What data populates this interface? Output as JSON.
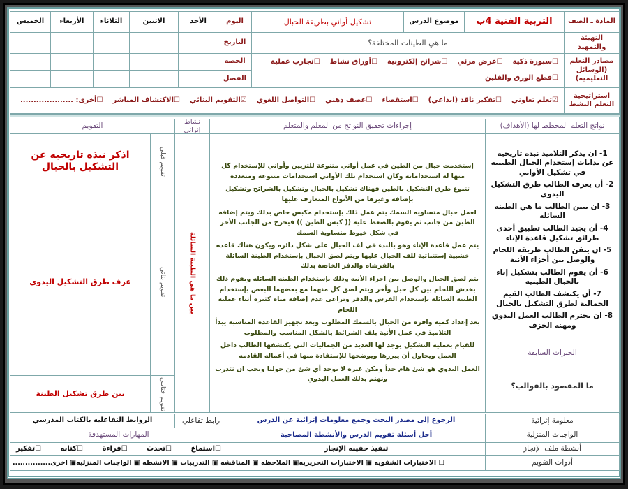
{
  "header": {
    "subject_label": "المادة ـ الصف",
    "subject_value": "التربية الفنية 4ب",
    "topic_label": "موضوع الدرس",
    "topic_value": "تشكيل أواني بطريقة الحبال",
    "day_label": "اليوم",
    "days": [
      "الأحد",
      "الاثنين",
      "الثلاثاء",
      "الأربعاء",
      "الخميس"
    ],
    "date_label": "التاريخ",
    "period_label": "الحصه",
    "class_label": "الفصل",
    "intro_label": "التهيئة والتمهيد",
    "intro_value": "ما هي الطينات المختلفة؟",
    "resources_label": "مصادر التعلم (الوسائل التعليميه)",
    "resources": [
      "سبورة ذكية",
      "عرض مرئي",
      "شرائح إلكترونية",
      "أوراق نشاط",
      "تجارب عملية",
      "قطع الورق والفلين"
    ],
    "strategy_label": "استراتيجية التعلم النشط",
    "strategies": [
      {
        "label": "تعلم تعاوني",
        "checked": true
      },
      {
        "label": "تفكير ناقد (ابداعي)",
        "checked": false
      },
      {
        "label": "استقصاء",
        "checked": false
      },
      {
        "label": "عصف ذهني",
        "checked": false
      },
      {
        "label": "التواصل اللغوي",
        "checked": false
      },
      {
        "label": "التقويم البنائي",
        "checked": true
      },
      {
        "label": "الاكتشاف المباشر",
        "checked": false
      },
      {
        "label": "أخرى: ....................",
        "checked": false
      }
    ]
  },
  "main": {
    "objectives_header": "نواتج التعلم المخطط لها (الأهداف)",
    "objectives": [
      "1- ان يذكر التلاميذ نبذه تاريخيه عن بدايات إستخدام الحبال الطينيه في تشكيل الأواني",
      "2- أن يعرف الطالب طرق التشكيل اليدوي",
      "3- ان يبين الطالب ما هي الطينه السائله",
      "4- أن يجيد الطالب تطبيق أحدى طرائق تشكيل قاعدة الإناء",
      "5- ان يتقن الطالب طريقه اللحام والوصل بين أجزاء الأنية",
      "6- أن يقوم الطالب بتشكيل إناء بالحبال الطينيه",
      "7- أن يكتشف الطالب القيم الجمالية لطرق التشكيل بالحبال",
      "8- ان يحترم الطالب العمل اليدوي ومهنه الخزف"
    ],
    "prior_header": "الخبرات السابقة",
    "prior_value": "ما المقصود بالقوالب؟",
    "procedures_header": "إجراءات تحقيق النواتج من المعلم والمتعلم",
    "procedures": [
      "إستخدمت حبال من الطين في عمل أواني متنوعة للتزيين وأواني للإستخدام كل منها له استخداماته وكان استخدام تلك الأواني استخدامات متنوعه ومتعددة",
      "تتنوع طرق التشكيل بالطين فهناك تشكيل بالحبال وتشكيل بالشرائح وتشكيل بإضافة وغيرها من الأنواع المتعارف عليها",
      "لعمل حبال متساويه السمك يتم عمل ذلك بإستخدام مكبس خاص بذلك ويتم إضافه الطين من جانب ثم يقوم بالضغط عليه (( كبس الطين )) فيخرج من الجانب الأخر في شكل خيوط متساوية السمك",
      "يتم عمل قاعدة الإناء وهو بالبدء في لف الحبال على شكل دائره ويكون هناك قاعده خشبية إستتنائية للف الحبال عليها ويتم لصق الحبال بإستخدام الطينة السائلة بالفرشاه والدفر الخاصة بذلك",
      "يتم لصق الحبال والوصل بين اجزاء الأنيه وذلك بإستخدام الطينه السائله ويقوم ذلك بخدش اللحام بين كل حبل وأخر ويتم لصق كل منهما مع بعضهما البعض بإستخدام الطينة السائلة بإستخدام الفرش والدفر وتراعى عدم إضافة مياه كثيرة أثناء عملية اللحام",
      "بعد إعداد كمية وافره من الحبال بالسمك المطلوب وبعد تجهيز القاعده المناسبة يبدأ التلاميذ في عمل الأنية بلف الشرائط بالشكل المناسب والمطلوب",
      "للقيام بعمليه التشكيل يوجد لها العديد من الجماليات التي يكتشفها الطالب داخل العمل ويحاول أن يبرزها ويوضحها للإستفادة منها في أعماله القادمه",
      "العمل اليدوي هو شئ هام جداً ومكن غيره لا يوجد أي شئ من حولنا ويجب ان نتدرب ونهتم بذلك العمل اليدوي"
    ],
    "enrichment_header": "نشاط إثرائي",
    "enrichment_value": "بين ما هي الطينة السائلة",
    "evaluation_header": "التقويم",
    "evaluation": [
      {
        "label": "تقويم قبلي",
        "value": "اذكر نبذه تاريخيه عن التشكيل بالحبال"
      },
      {
        "label": "تقويم بنائي",
        "value": "عرف طرق التشكيل اليدوي"
      },
      {
        "label": "تقويم ختامي",
        "value": "بين طرق تشكيل الطينة"
      }
    ]
  },
  "footer": {
    "enrich_info_label": "معلومة إثرائية",
    "enrich_info_value": "الرجوع إلى مصدر البحث وجمع معلومات إثرائية عن الدرس",
    "link_label": "رابط تفاعلي",
    "link_value": "الروابط التفاعليه بالكتاب المدرسي",
    "homework_label": "الواجبات المنزلية",
    "homework_value": "أحل أسئلة تقويم الدرس والأنشطة المصاحبة",
    "skills_label": "المهارات المستهدفة",
    "portfolio_label": "أنشطة ملف الإنجاز",
    "portfolio_value": "تنفيذ حقيبه الإنجاز",
    "skills": [
      "استماع",
      "تحدث",
      "قراءة",
      "كتابه",
      "تفكير"
    ],
    "tools_label": "أدوات التقويم",
    "tools_value": "☐ الاختبارات الشفويه ▣ الاختبارات التحريريه▣ الملاحظه ▣ المناقشه ▣ التدريبات ▣ الانشطه ▣ الواجبات المنزليه▣ اخرى..............."
  },
  "colors": {
    "border": "#7fa8aa",
    "heading_red": "#c00000",
    "procedure_green": "#3a4a10",
    "footer_blue": "#1a2a8a"
  }
}
